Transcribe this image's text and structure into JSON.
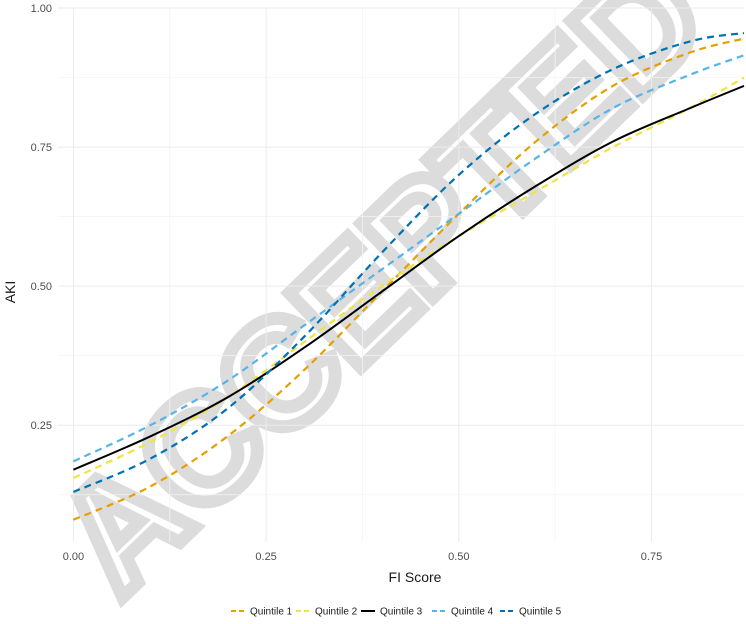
{
  "chart_data": {
    "type": "line",
    "xlabel": "FI Score",
    "ylabel": "AKI",
    "xlim": [
      -0.02,
      0.87
    ],
    "ylim": [
      0.04,
      1.0
    ],
    "x_ticks": [
      0.0,
      0.25,
      0.5,
      0.75
    ],
    "x_tick_labels": [
      "0.00",
      "0.25",
      "0.50",
      "0.75"
    ],
    "y_ticks": [
      0.25,
      0.5,
      0.75,
      1.0
    ],
    "y_tick_labels": [
      "0.25",
      "0.50",
      "0.75",
      "1.00"
    ],
    "grid": true,
    "legend_position": "bottom",
    "x": [
      0.0,
      0.1,
      0.2,
      0.3,
      0.4,
      0.5,
      0.6,
      0.7,
      0.8,
      0.87
    ],
    "series": [
      {
        "name": "Quintile 1",
        "color": "#E69F00",
        "dash": "dashed",
        "values": [
          0.08,
          0.14,
          0.23,
          0.35,
          0.49,
          0.63,
          0.76,
          0.86,
          0.92,
          0.945
        ]
      },
      {
        "name": "Quintile 2",
        "color": "#F0E442",
        "dash": "dashed",
        "values": [
          0.155,
          0.22,
          0.3,
          0.4,
          0.5,
          0.59,
          0.67,
          0.75,
          0.82,
          0.875
        ]
      },
      {
        "name": "Quintile 3",
        "color": "#000000",
        "dash": "solid",
        "values": [
          0.17,
          0.23,
          0.3,
          0.39,
          0.49,
          0.59,
          0.68,
          0.76,
          0.82,
          0.86
        ]
      },
      {
        "name": "Quintile 4",
        "color": "#56B4E9",
        "dash": "dashed",
        "values": [
          0.185,
          0.25,
          0.33,
          0.43,
          0.53,
          0.63,
          0.73,
          0.82,
          0.88,
          0.915
        ]
      },
      {
        "name": "Quintile 5",
        "color": "#0072B2",
        "dash": "dashed",
        "values": [
          0.13,
          0.19,
          0.28,
          0.41,
          0.56,
          0.7,
          0.81,
          0.89,
          0.94,
          0.955
        ]
      }
    ]
  },
  "watermark": {
    "text": "ACCEPTED",
    "color": "#d4d4d4"
  }
}
